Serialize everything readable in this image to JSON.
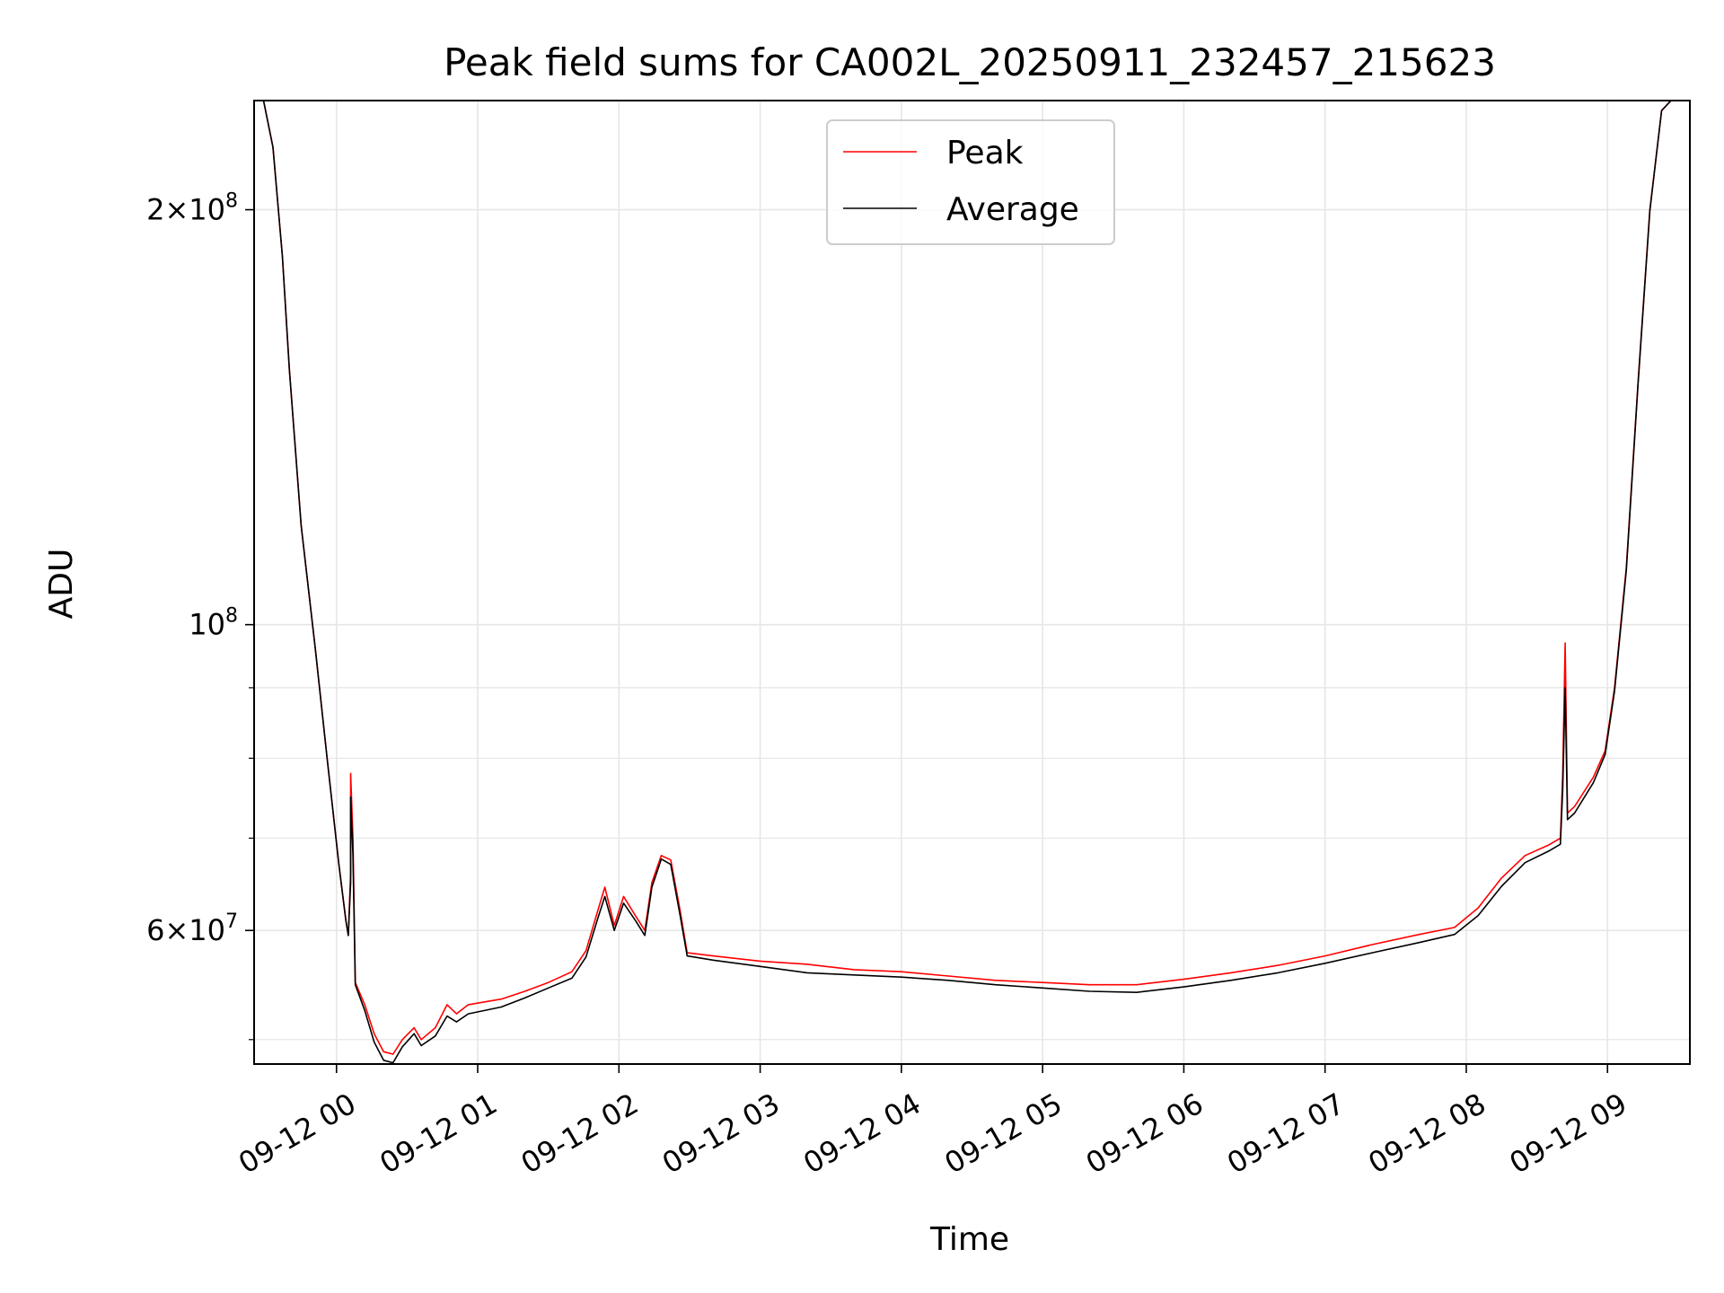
{
  "chart_data": {
    "type": "line",
    "title": "Peak field sums for CA002L_20250911_232457_215623",
    "xlabel": "Time",
    "ylabel": "ADU",
    "y_scale": "log",
    "ylim": [
      48000000,
      240000000
    ],
    "xlim": [
      "2025-09-11 23:25",
      "2025-09-12 09:35"
    ],
    "grid": true,
    "legend": {
      "placement": "top-center",
      "entries": [
        "Peak",
        "Average"
      ]
    },
    "x_ticks": [
      "09-12 00",
      "09-12 01",
      "09-12 02",
      "09-12 03",
      "09-12 04",
      "09-12 05",
      "09-12 06",
      "09-12 07",
      "09-12 08",
      "09-12 09"
    ],
    "y_ticks": [
      {
        "value": 200000000,
        "base": "2×10",
        "exp": "8"
      },
      {
        "value": 100000000,
        "base": "10",
        "exp": "8"
      },
      {
        "value": 60000000,
        "base": "6×10",
        "exp": "7"
      }
    ],
    "y_minor_ticks": [
      50000000,
      70000000,
      80000000,
      90000000
    ],
    "series": [
      {
        "name": "Peak",
        "color": "#ff0000",
        "points": [
          [
            "2025-09-11 23:25",
            240000000
          ],
          [
            "2025-09-11 23:29",
            240000000
          ],
          [
            "2025-09-11 23:33",
            222000000
          ],
          [
            "2025-09-11 23:37",
            185000000
          ],
          [
            "2025-09-11 23:40",
            153000000
          ],
          [
            "2025-09-11 23:45",
            118000000
          ],
          [
            "2025-09-11 23:51",
            96000000
          ],
          [
            "2025-09-11 23:56",
            80000000
          ],
          [
            "2025-09-12 00:01",
            67000000
          ],
          [
            "2025-09-12 00:04",
            61000000
          ],
          [
            "2025-09-12 00:05",
            59500000
          ],
          [
            "2025-09-12 00:06",
            66000000
          ],
          [
            "2025-09-12 00:06",
            78000000
          ],
          [
            "2025-09-12 00:07",
            70000000
          ],
          [
            "2025-09-12 00:08",
            55000000
          ],
          [
            "2025-09-12 00:12",
            53000000
          ],
          [
            "2025-09-12 00:16",
            50500000
          ],
          [
            "2025-09-12 00:20",
            49000000
          ],
          [
            "2025-09-12 00:24",
            48800000
          ],
          [
            "2025-09-12 00:28",
            50000000
          ],
          [
            "2025-09-12 00:33",
            51000000
          ],
          [
            "2025-09-12 00:36",
            50000000
          ],
          [
            "2025-09-12 00:42",
            51000000
          ],
          [
            "2025-09-12 00:47",
            53000000
          ],
          [
            "2025-09-12 00:51",
            52200000
          ],
          [
            "2025-09-12 00:56",
            53000000
          ],
          [
            "2025-09-12 01:10",
            53500000
          ],
          [
            "2025-09-12 01:20",
            54200000
          ],
          [
            "2025-09-12 01:30",
            55000000
          ],
          [
            "2025-09-12 01:40",
            56000000
          ],
          [
            "2025-09-12 01:46",
            58000000
          ],
          [
            "2025-09-12 01:51",
            62000000
          ],
          [
            "2025-09-12 01:54",
            64500000
          ],
          [
            "2025-09-12 01:58",
            60500000
          ],
          [
            "2025-09-12 02:02",
            63500000
          ],
          [
            "2025-09-12 02:07",
            61500000
          ],
          [
            "2025-09-12 02:11",
            60000000
          ],
          [
            "2025-09-12 02:14",
            65000000
          ],
          [
            "2025-09-12 02:18",
            68000000
          ],
          [
            "2025-09-12 02:22",
            67500000
          ],
          [
            "2025-09-12 02:26",
            62000000
          ],
          [
            "2025-09-12 02:29",
            57800000
          ],
          [
            "2025-09-12 02:40",
            57500000
          ],
          [
            "2025-09-12 03:00",
            57000000
          ],
          [
            "2025-09-12 03:20",
            56700000
          ],
          [
            "2025-09-12 03:40",
            56200000
          ],
          [
            "2025-09-12 04:00",
            56000000
          ],
          [
            "2025-09-12 04:20",
            55600000
          ],
          [
            "2025-09-12 04:40",
            55200000
          ],
          [
            "2025-09-12 05:00",
            55000000
          ],
          [
            "2025-09-12 05:20",
            54800000
          ],
          [
            "2025-09-12 05:40",
            54800000
          ],
          [
            "2025-09-12 06:00",
            55300000
          ],
          [
            "2025-09-12 06:20",
            55900000
          ],
          [
            "2025-09-12 06:40",
            56600000
          ],
          [
            "2025-09-12 07:00",
            57500000
          ],
          [
            "2025-09-12 07:20",
            58600000
          ],
          [
            "2025-09-12 07:40",
            59600000
          ],
          [
            "2025-09-12 07:55",
            60300000
          ],
          [
            "2025-09-12 08:05",
            62300000
          ],
          [
            "2025-09-12 08:15",
            65500000
          ],
          [
            "2025-09-12 08:25",
            68000000
          ],
          [
            "2025-09-12 08:35",
            69200000
          ],
          [
            "2025-09-12 08:40",
            70000000
          ],
          [
            "2025-09-12 08:41",
            78000000
          ],
          [
            "2025-09-12 08:42",
            97000000
          ],
          [
            "2025-09-12 08:43",
            73000000
          ],
          [
            "2025-09-12 08:46",
            73800000
          ],
          [
            "2025-09-12 08:54",
            77500000
          ],
          [
            "2025-09-12 08:59",
            81000000
          ],
          [
            "2025-09-12 09:03",
            90000000
          ],
          [
            "2025-09-12 09:08",
            110000000
          ],
          [
            "2025-09-12 09:13",
            150000000
          ],
          [
            "2025-09-12 09:18",
            200000000
          ],
          [
            "2025-09-12 09:23",
            236000000
          ],
          [
            "2025-09-12 09:27",
            240000000
          ],
          [
            "2025-09-12 09:35",
            240000000
          ]
        ]
      },
      {
        "name": "Average",
        "color": "#000000",
        "points": [
          [
            "2025-09-11 23:25",
            240000000
          ],
          [
            "2025-09-11 23:29",
            240000000
          ],
          [
            "2025-09-11 23:33",
            222000000
          ],
          [
            "2025-09-11 23:37",
            185000000
          ],
          [
            "2025-09-11 23:40",
            153000000
          ],
          [
            "2025-09-11 23:45",
            118000000
          ],
          [
            "2025-09-11 23:51",
            96000000
          ],
          [
            "2025-09-11 23:56",
            80000000
          ],
          [
            "2025-09-12 00:01",
            67000000
          ],
          [
            "2025-09-12 00:04",
            61000000
          ],
          [
            "2025-09-12 00:05",
            59500000
          ],
          [
            "2025-09-12 00:06",
            65000000
          ],
          [
            "2025-09-12 00:06",
            75000000
          ],
          [
            "2025-09-12 00:07",
            68000000
          ],
          [
            "2025-09-12 00:08",
            54800000
          ],
          [
            "2025-09-12 00:12",
            52500000
          ],
          [
            "2025-09-12 00:16",
            49800000
          ],
          [
            "2025-09-12 00:20",
            48300000
          ],
          [
            "2025-09-12 00:24",
            48100000
          ],
          [
            "2025-09-12 00:28",
            49400000
          ],
          [
            "2025-09-12 00:33",
            50500000
          ],
          [
            "2025-09-12 00:36",
            49500000
          ],
          [
            "2025-09-12 00:42",
            50300000
          ],
          [
            "2025-09-12 00:47",
            52000000
          ],
          [
            "2025-09-12 00:51",
            51500000
          ],
          [
            "2025-09-12 00:56",
            52200000
          ],
          [
            "2025-09-12 01:10",
            52800000
          ],
          [
            "2025-09-12 01:20",
            53600000
          ],
          [
            "2025-09-12 01:30",
            54500000
          ],
          [
            "2025-09-12 01:40",
            55400000
          ],
          [
            "2025-09-12 01:46",
            57400000
          ],
          [
            "2025-09-12 01:51",
            61200000
          ],
          [
            "2025-09-12 01:54",
            63500000
          ],
          [
            "2025-09-12 01:58",
            60000000
          ],
          [
            "2025-09-12 02:02",
            62800000
          ],
          [
            "2025-09-12 02:07",
            61000000
          ],
          [
            "2025-09-12 02:11",
            59500000
          ],
          [
            "2025-09-12 02:14",
            64500000
          ],
          [
            "2025-09-12 02:18",
            67600000
          ],
          [
            "2025-09-12 02:22",
            67000000
          ],
          [
            "2025-09-12 02:26",
            61500000
          ],
          [
            "2025-09-12 02:29",
            57500000
          ],
          [
            "2025-09-12 02:40",
            57100000
          ],
          [
            "2025-09-12 03:00",
            56500000
          ],
          [
            "2025-09-12 03:20",
            55900000
          ],
          [
            "2025-09-12 03:40",
            55700000
          ],
          [
            "2025-09-12 04:00",
            55500000
          ],
          [
            "2025-09-12 04:20",
            55200000
          ],
          [
            "2025-09-12 04:40",
            54800000
          ],
          [
            "2025-09-12 05:00",
            54500000
          ],
          [
            "2025-09-12 05:20",
            54200000
          ],
          [
            "2025-09-12 05:40",
            54100000
          ],
          [
            "2025-09-12 06:00",
            54600000
          ],
          [
            "2025-09-12 06:20",
            55200000
          ],
          [
            "2025-09-12 06:40",
            55900000
          ],
          [
            "2025-09-12 07:00",
            56800000
          ],
          [
            "2025-09-12 07:20",
            57800000
          ],
          [
            "2025-09-12 07:40",
            58800000
          ],
          [
            "2025-09-12 07:55",
            59600000
          ],
          [
            "2025-09-12 08:05",
            61500000
          ],
          [
            "2025-09-12 08:15",
            64600000
          ],
          [
            "2025-09-12 08:25",
            67200000
          ],
          [
            "2025-09-12 08:35",
            68500000
          ],
          [
            "2025-09-12 08:40",
            69300000
          ],
          [
            "2025-09-12 08:41",
            76000000
          ],
          [
            "2025-09-12 08:42",
            90000000
          ],
          [
            "2025-09-12 08:43",
            72200000
          ],
          [
            "2025-09-12 08:46",
            73000000
          ],
          [
            "2025-09-12 08:54",
            76800000
          ],
          [
            "2025-09-12 08:59",
            80500000
          ],
          [
            "2025-09-12 09:03",
            89500000
          ],
          [
            "2025-09-12 09:08",
            109500000
          ],
          [
            "2025-09-12 09:13",
            149500000
          ],
          [
            "2025-09-12 09:18",
            199500000
          ],
          [
            "2025-09-12 09:23",
            236000000
          ],
          [
            "2025-09-12 09:27",
            240000000
          ],
          [
            "2025-09-12 09:35",
            240000000
          ]
        ]
      }
    ]
  }
}
